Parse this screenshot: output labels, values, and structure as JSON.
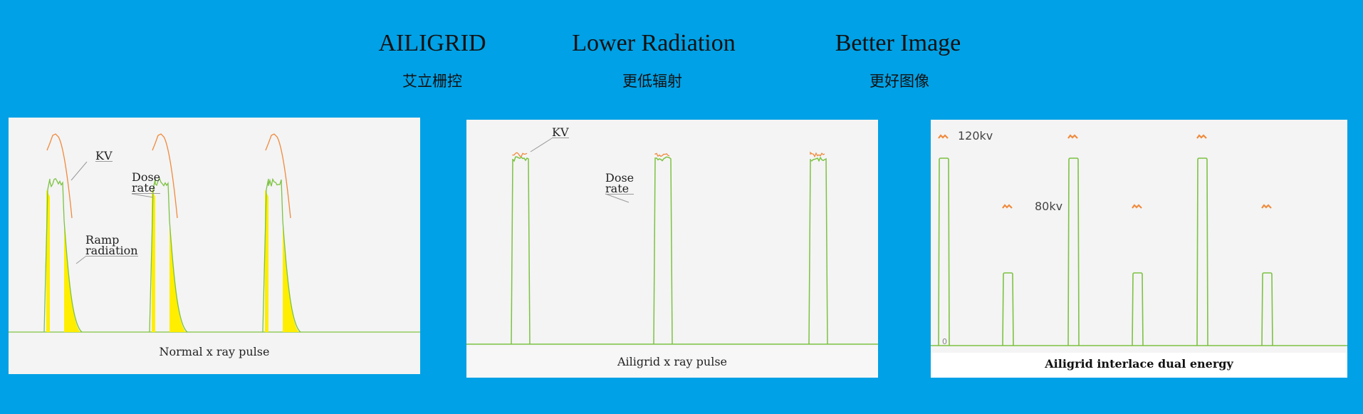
{
  "headings": [
    {
      "title": "AILIGRID",
      "subtitle": "艾立栅控"
    },
    {
      "title": "Lower Radiation",
      "subtitle": "更低辐射"
    },
    {
      "title": "Better Image",
      "subtitle": "更好图像"
    }
  ],
  "colors": {
    "background": "#00a1e6",
    "dose_rate": "#7dc242",
    "kv": "#f08a3c",
    "ramp_radiation": "#ffee00",
    "panel": "#f4f4f4"
  },
  "panels": [
    {
      "caption": "Normal x ray pulse",
      "labels": {
        "kv": "KV",
        "dose_rate": "Dose rate",
        "ramp": "Ramp radiation"
      },
      "dose_rate_line1": "Dose",
      "dose_rate_line2": "rate",
      "ramp_line1": "Ramp",
      "ramp_line2": "radiation",
      "pulses": 3
    },
    {
      "caption": "Ailigrid x ray pulse",
      "labels": {
        "kv": "KV",
        "dose_rate": "Dose rate"
      },
      "dose_rate_line1": "Dose",
      "dose_rate_line2": "rate",
      "pulses": 3
    },
    {
      "caption": "Ailigrid interlace dual energy",
      "labels": {
        "high": "120kv",
        "low": "80kv",
        "axis_zero": "0"
      },
      "pulse_sequence": [
        "120kv",
        "80kv",
        "120kv",
        "80kv",
        "120kv",
        "80kv"
      ]
    }
  ]
}
